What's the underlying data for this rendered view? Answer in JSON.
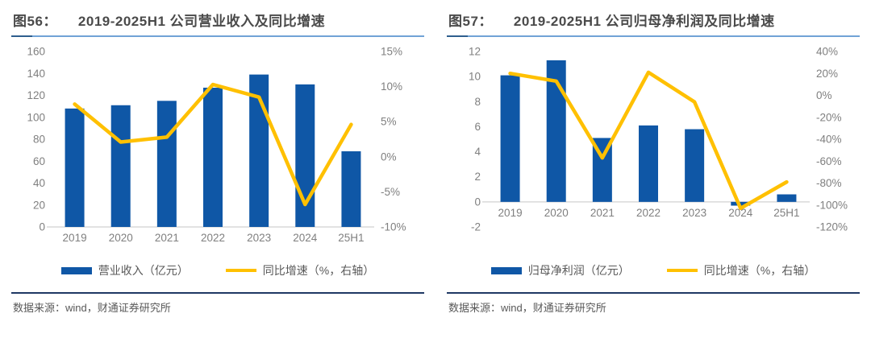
{
  "colors": {
    "bar": "#0f57a6",
    "line": "#ffc000",
    "axis_line": "#d9d9d9",
    "title_underline": "#71a3d6",
    "title_underline_accent": "#2e5e8e",
    "source_divider": "#1f3864",
    "title_text": "#4a4a4a",
    "tick_text": "#7f7f7f",
    "legend_text": "#595959"
  },
  "panels": [
    {
      "fig_label": "图56：",
      "title": "2019-2025H1 公司营业收入及同比增速",
      "legend": [
        {
          "label": "营业收入（亿元）",
          "swatch": "bar"
        },
        {
          "label": "同比增速（%，右轴）",
          "swatch": "line"
        }
      ],
      "source": "数据来源：wind，财通证券研究所"
    },
    {
      "fig_label": "图57：",
      "title": "2019-2025H1 公司归母净利润及同比增速",
      "legend": [
        {
          "label": "归母净利润（亿元）",
          "swatch": "bar"
        },
        {
          "label": "同比增速（%，右轴）",
          "swatch": "line"
        }
      ],
      "source": "数据来源：wind，财通证券研究所"
    }
  ],
  "chart_data": [
    {
      "type": "bar",
      "title": "2019-2025H1 公司营业收入及同比增速",
      "categories": [
        "2019",
        "2020",
        "2021",
        "2022",
        "2023",
        "2024",
        "25H1"
      ],
      "series": [
        {
          "name": "营业收入（亿元）",
          "type": "bar",
          "axis": "left",
          "values": [
            108,
            111,
            115,
            127,
            139,
            130,
            69
          ]
        },
        {
          "name": "同比增速（%，右轴）",
          "type": "line",
          "axis": "right",
          "values": [
            7.5,
            2.1,
            2.8,
            10.3,
            8.5,
            -6.8,
            4.6
          ]
        }
      ],
      "left_axis": {
        "min": 0,
        "max": 160,
        "step": 20,
        "suffix": ""
      },
      "right_axis": {
        "min": -10,
        "max": 15,
        "step": 5,
        "suffix": "%"
      },
      "grid": false,
      "legend_position": "bottom"
    },
    {
      "type": "bar",
      "title": "2019-2025H1 公司归母净利润及同比增速",
      "categories": [
        "2019",
        "2020",
        "2021",
        "2022",
        "2023",
        "2024",
        "25H1"
      ],
      "series": [
        {
          "name": "归母净利润（亿元）",
          "type": "bar",
          "axis": "left",
          "values": [
            10.1,
            11.3,
            5.1,
            6.1,
            5.8,
            -0.3,
            0.6
          ]
        },
        {
          "name": "同比增速（%，右轴）",
          "type": "line",
          "axis": "right",
          "values": [
            20,
            13,
            -57,
            21,
            -6,
            -103,
            -79
          ]
        }
      ],
      "left_axis": {
        "min": -2,
        "max": 12,
        "step": 2,
        "suffix": ""
      },
      "right_axis": {
        "min": -120,
        "max": 40,
        "step": 20,
        "suffix": "%"
      },
      "grid": false,
      "legend_position": "bottom"
    }
  ]
}
